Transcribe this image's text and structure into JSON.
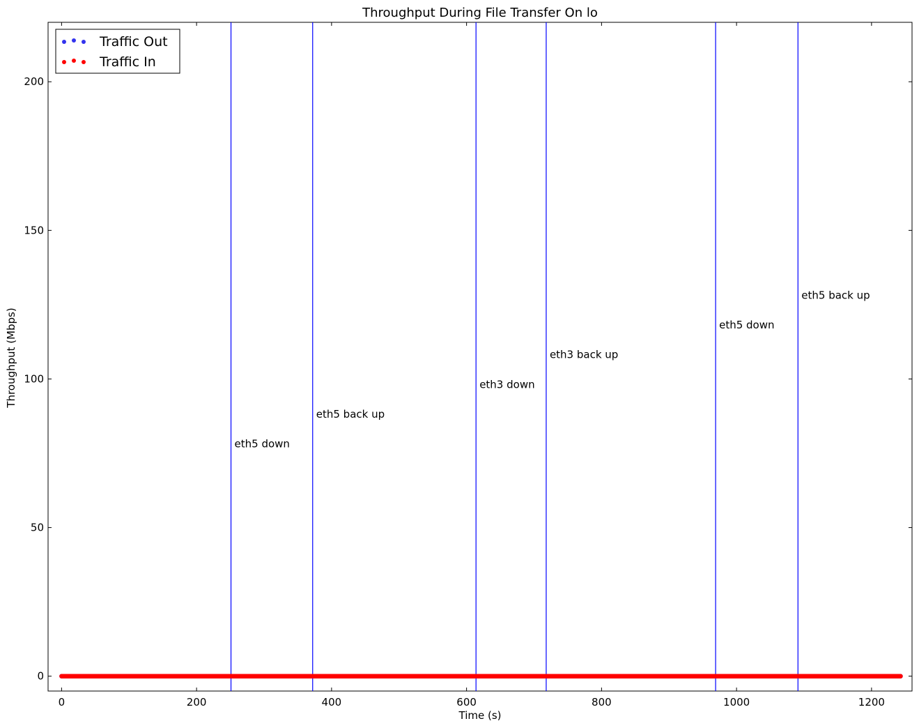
{
  "chart_data": {
    "type": "scatter",
    "title": "Throughput During File Transfer On lo",
    "xlabel": "Time (s)",
    "ylabel": "Throughput (Mbps)",
    "xlim": [
      -20,
      1260
    ],
    "ylim": [
      -5,
      220
    ],
    "xticks": [
      0,
      200,
      400,
      600,
      800,
      1000,
      1200
    ],
    "yticks": [
      0,
      50,
      100,
      150,
      200
    ],
    "grid": false,
    "legend_position": "top-left",
    "series": [
      {
        "name": "Traffic Out",
        "color": "#3333ee",
        "x_range": [
          0,
          1243
        ],
        "y": 0
      },
      {
        "name": "Traffic In",
        "color": "#ff0000",
        "x_range": [
          0,
          1243
        ],
        "y": 0
      }
    ],
    "events": [
      {
        "x": 251,
        "label": "eth5 down",
        "label_y": 77
      },
      {
        "x": 372,
        "label": "eth5 back up",
        "label_y": 87
      },
      {
        "x": 614,
        "label": "eth3 down",
        "label_y": 97
      },
      {
        "x": 718,
        "label": "eth3 back up",
        "label_y": 107
      },
      {
        "x": 969,
        "label": "eth5 down",
        "label_y": 117
      },
      {
        "x": 1091,
        "label": "eth5 back up",
        "label_y": 127
      }
    ],
    "event_line_color": "#0000ff"
  }
}
